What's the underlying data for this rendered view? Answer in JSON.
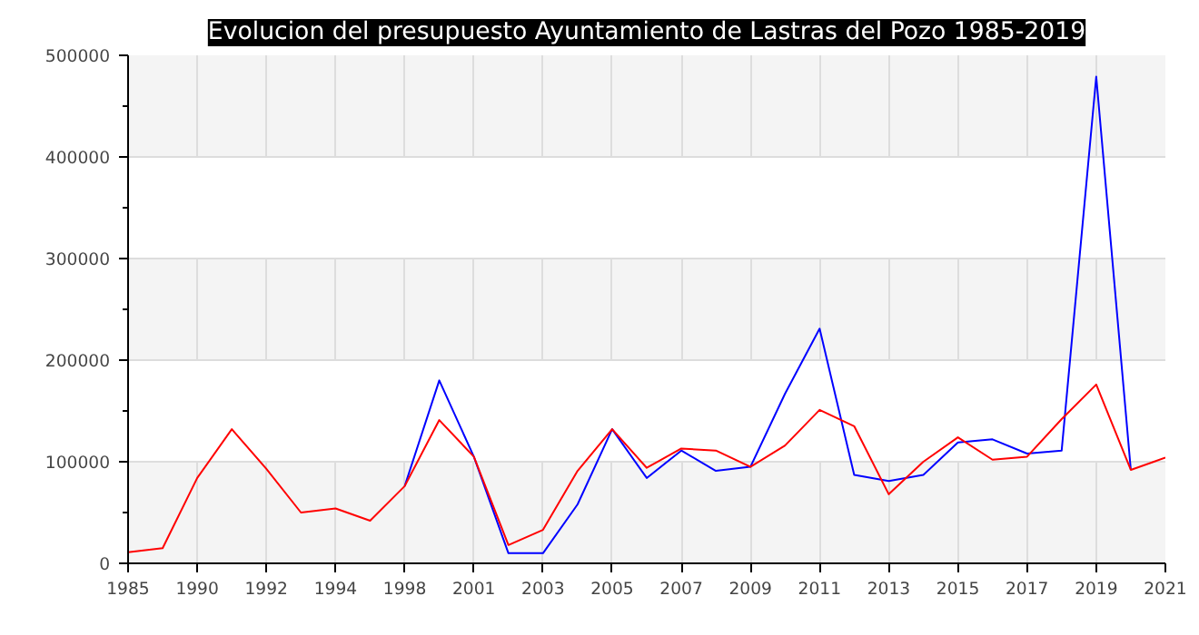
{
  "chart_data": {
    "type": "line",
    "title": "Evolucion del presupuesto Ayuntamiento de Lastras del Pozo 1985-2019",
    "categories": [
      "1985",
      null,
      "1990",
      null,
      "1992",
      null,
      "1994",
      null,
      "1998",
      null,
      "2001",
      null,
      "2003",
      null,
      "2005",
      null,
      "2007",
      null,
      "2009",
      null,
      "2011",
      null,
      "2013",
      null,
      "2015",
      null,
      "2017",
      null,
      "2019",
      null,
      "2021"
    ],
    "series": [
      {
        "color": "#0000ff",
        "values": [
          null,
          null,
          null,
          null,
          null,
          null,
          null,
          null,
          76000,
          180000,
          105000,
          10000,
          10000,
          58000,
          132000,
          84000,
          111000,
          91000,
          95000,
          167000,
          231000,
          87000,
          81000,
          87000,
          119000,
          122000,
          108000,
          111000,
          479000,
          92000,
          null
        ]
      },
      {
        "color": "#ff0000",
        "values": [
          11000,
          15000,
          84000,
          132000,
          93000,
          50000,
          54000,
          42000,
          76000,
          141000,
          105000,
          18000,
          33000,
          91000,
          132000,
          94000,
          113000,
          111000,
          95000,
          116000,
          151000,
          135000,
          68000,
          100000,
          124000,
          102000,
          105000,
          142000,
          176000,
          92000,
          104000
        ]
      }
    ],
    "ylim": [
      0,
      500000
    ],
    "yticks": [
      0,
      100000,
      200000,
      300000,
      400000,
      500000
    ],
    "grid": true
  }
}
